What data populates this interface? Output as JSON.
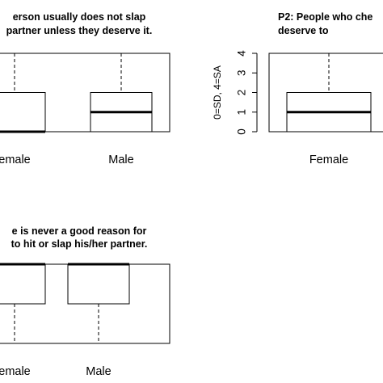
{
  "chart_data": [
    {
      "type": "box",
      "title_lines": [
        "erson usually does not slap",
        "partner unless they deserve it."
      ],
      "categories": [
        "emale",
        "Male"
      ],
      "ylabel": "",
      "ylim": [
        0,
        4
      ],
      "y_ticks": [],
      "boxes": [
        {
          "min": 0,
          "q1": 0,
          "median": 0,
          "q3": 2,
          "max": 4
        },
        {
          "min": 0,
          "q1": 0,
          "median": 1,
          "q3": 2,
          "max": 4
        }
      ]
    },
    {
      "type": "box",
      "title_lines": [
        "P2: People who che",
        "deserve to"
      ],
      "categories": [
        "Female"
      ],
      "ylabel": "0=SD, 4=SA",
      "ylim": [
        0,
        4
      ],
      "y_ticks": [
        "0",
        "1",
        "2",
        "3",
        "4"
      ],
      "boxes": [
        {
          "min": 0,
          "q1": 0,
          "median": 1,
          "q3": 2,
          "max": 4
        }
      ]
    },
    {
      "type": "box",
      "title_lines": [
        "e is never a good reason for",
        "to hit or slap his/her partner."
      ],
      "categories": [
        "emale",
        "Male"
      ],
      "ylabel": "",
      "ylim": [
        0,
        4
      ],
      "y_ticks": [],
      "boxes": [
        {
          "min": 0,
          "q1": 2,
          "median": 4,
          "q3": 4,
          "max": 4
        },
        {
          "min": 0,
          "q1": 2,
          "median": 4,
          "q3": 4,
          "max": 4
        }
      ]
    }
  ]
}
